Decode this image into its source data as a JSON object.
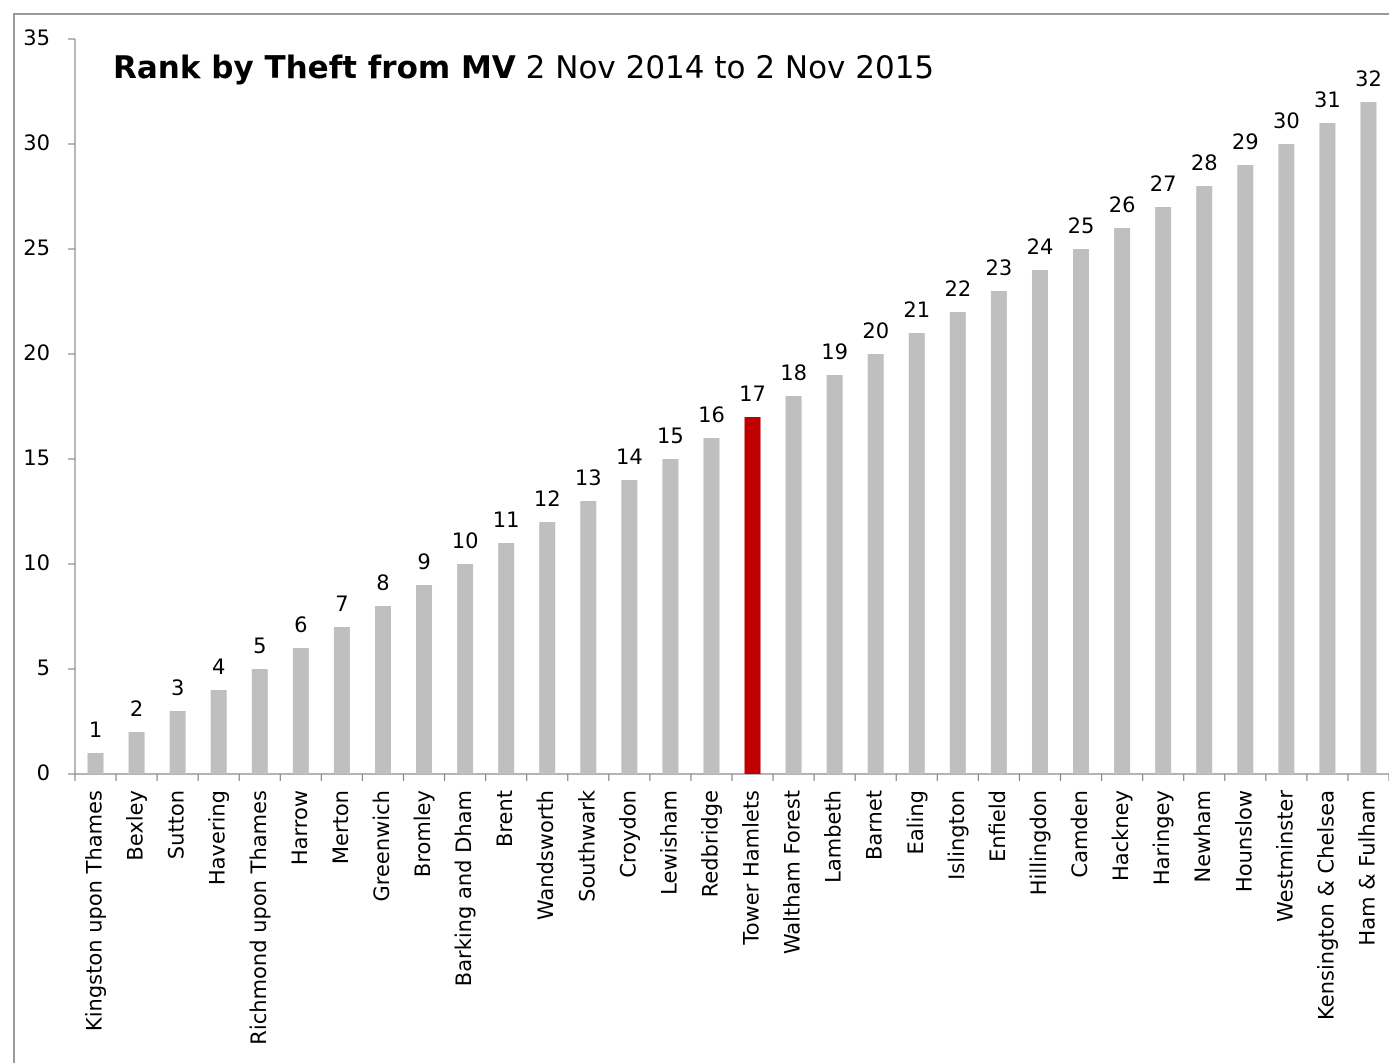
{
  "chart_data": {
    "type": "bar",
    "title": "Rank by Theft from MV",
    "subtitle": "2 Nov 2014 to 2 Nov 2015",
    "categories": [
      "Kingston upon Thames",
      "Bexley",
      "Sutton",
      "Havering",
      "Richmond upon Thames",
      "Harrow",
      "Merton",
      "Greenwich",
      "Bromley",
      "Barking and Dham",
      "Brent",
      "Wandsworth",
      "Southwark",
      "Croydon",
      "Lewisham",
      "Redbridge",
      "Tower Hamlets",
      "Waltham Forest",
      "Lambeth",
      "Barnet",
      "Ealing",
      "Islington",
      "Enfield",
      "Hillingdon",
      "Camden",
      "Hackney",
      "Haringey",
      "Newham",
      "Hounslow",
      "Westminster",
      "Kensington & Chelsea",
      "Ham & Fulham"
    ],
    "values": [
      1,
      2,
      3,
      4,
      5,
      6,
      7,
      8,
      9,
      10,
      11,
      12,
      13,
      14,
      15,
      16,
      17,
      18,
      19,
      20,
      21,
      22,
      23,
      24,
      25,
      26,
      27,
      28,
      29,
      30,
      31,
      32
    ],
    "colors": [
      "#bfbfbf",
      "#bfbfbf",
      "#bfbfbf",
      "#bfbfbf",
      "#bfbfbf",
      "#bfbfbf",
      "#bfbfbf",
      "#bfbfbf",
      "#bfbfbf",
      "#bfbfbf",
      "#bfbfbf",
      "#bfbfbf",
      "#bfbfbf",
      "#bfbfbf",
      "#bfbfbf",
      "#bfbfbf",
      "#c00000",
      "#bfbfbf",
      "#bfbfbf",
      "#bfbfbf",
      "#bfbfbf",
      "#bfbfbf",
      "#bfbfbf",
      "#bfbfbf",
      "#bfbfbf",
      "#bfbfbf",
      "#bfbfbf",
      "#bfbfbf",
      "#bfbfbf",
      "#bfbfbf",
      "#bfbfbf",
      "#bfbfbf"
    ],
    "ylim": [
      0,
      35
    ],
    "yticks": [
      0,
      5,
      10,
      15,
      20,
      25,
      30,
      35
    ],
    "grid": false
  }
}
